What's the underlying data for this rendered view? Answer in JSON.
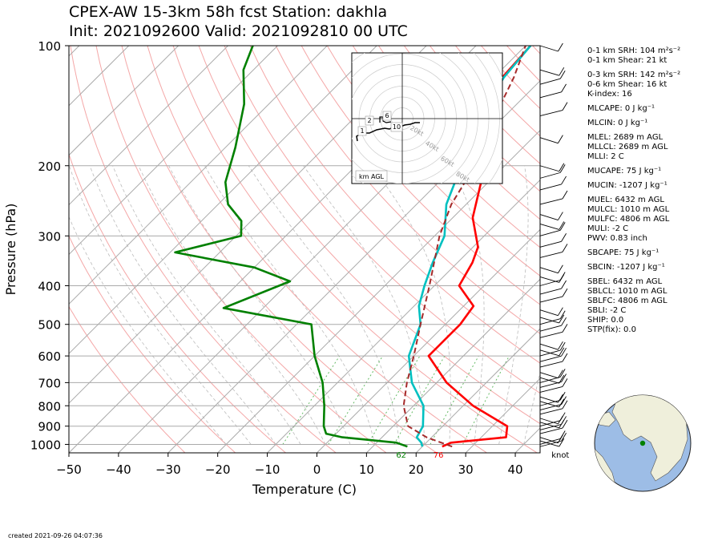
{
  "header": {
    "title_line1": "CPEX-AW 15-3km  58h fcst  Station: dakhla",
    "title_line2": "Init: 2021092600  Valid: 2021092810 00 UTC"
  },
  "footer": "created 2021-09-26 04:07:36",
  "params": [
    {
      "label": "0-1 km SRH: 104 m²s⁻²",
      "gap": false
    },
    {
      "label": "0-1 km Shear: 21 kt",
      "gap": false
    },
    {
      "label": "0-3 km SRH: 142 m²s⁻²",
      "gap": true
    },
    {
      "label": "0-6 km Shear: 16 kt",
      "gap": false
    },
    {
      "label": "K-index: 16",
      "gap": false
    },
    {
      "label": "MLCAPE: 0 J kg⁻¹",
      "gap": true
    },
    {
      "label": "MLCIN: 0 J kg⁻¹",
      "gap": true
    },
    {
      "label": "MLEL: 2689 m AGL",
      "gap": true
    },
    {
      "label": "MLLCL: 2689 m AGL",
      "gap": false
    },
    {
      "label": "MLLI: 2 C",
      "gap": false
    },
    {
      "label": "MUCAPE: 75 J kg⁻¹",
      "gap": true
    },
    {
      "label": "MUCIN: -1207 J kg⁻¹",
      "gap": true
    },
    {
      "label": "MUEL: 6432 m AGL",
      "gap": true
    },
    {
      "label": "MULCL: 1010 m AGL",
      "gap": false
    },
    {
      "label": "MULFC: 4806 m AGL",
      "gap": false
    },
    {
      "label": "MULI: -2 C",
      "gap": false
    },
    {
      "label": "PWV: 0.83 inch",
      "gap": false
    },
    {
      "label": "SBCAPE: 75 J kg⁻¹",
      "gap": true
    },
    {
      "label": "SBCIN: -1207 J kg⁻¹",
      "gap": true
    },
    {
      "label": "SBEL: 6432 m AGL",
      "gap": true
    },
    {
      "label": "SBLCL: 1010 m AGL",
      "gap": false
    },
    {
      "label": "SBLFC: 4806 m AGL",
      "gap": false
    },
    {
      "label": "SBLI: -2 C",
      "gap": false
    },
    {
      "label": "SHIP: 0.0",
      "gap": false
    },
    {
      "label": "STP(fix): 0.0",
      "gap": false
    }
  ],
  "chart_data": {
    "type": "line",
    "xlabel": "Temperature (C)",
    "ylabel": "Pressure (hPa)",
    "xlim": [
      -50,
      45
    ],
    "ylim": [
      1050,
      100
    ],
    "y_scale": "log",
    "x_ticks": [
      -50,
      -40,
      -30,
      -20,
      -10,
      0,
      10,
      20,
      30,
      40
    ],
    "y_ticks": [
      100,
      200,
      300,
      400,
      500,
      600,
      700,
      800,
      900,
      1000
    ],
    "x_tick_labels": [
      "−50",
      "−40",
      "−30",
      "−20",
      "−10",
      "0",
      "10",
      "20",
      "30",
      "40"
    ],
    "y_tick_labels": [
      "100",
      "200",
      "300",
      "400",
      "500",
      "600",
      "700",
      "800",
      "900",
      "1000"
    ],
    "skew_deg": 45,
    "grid": true,
    "series": [
      {
        "id": "temperature",
        "color": "#ff0000",
        "points": [
          [
            24,
            1013
          ],
          [
            25,
            990
          ],
          [
            35,
            960
          ],
          [
            33,
            900
          ],
          [
            22,
            800
          ],
          [
            12,
            700
          ],
          [
            3,
            600
          ],
          [
            3,
            500
          ],
          [
            2,
            450
          ],
          [
            -5,
            400
          ],
          [
            -7,
            350
          ],
          [
            -9,
            320
          ],
          [
            -16,
            270
          ],
          [
            -24,
            200
          ],
          [
            -31,
            175
          ],
          [
            -35,
            150
          ],
          [
            -38,
            130
          ],
          [
            -39,
            100
          ]
        ]
      },
      {
        "id": "virtual_temperature",
        "color": "#00c0c0",
        "points": [
          [
            20,
            1013
          ],
          [
            19,
            990
          ],
          [
            17,
            960
          ],
          [
            16,
            900
          ],
          [
            12,
            800
          ],
          [
            5,
            700
          ],
          [
            -1,
            600
          ],
          [
            -5,
            500
          ],
          [
            -9,
            450
          ],
          [
            -12,
            400
          ],
          [
            -15,
            350
          ],
          [
            -18,
            300
          ],
          [
            -24,
            250
          ],
          [
            -31,
            180
          ],
          [
            -35,
            150
          ],
          [
            -38,
            120
          ],
          [
            -39,
            100
          ]
        ]
      },
      {
        "id": "dewpoint",
        "color": "#008000",
        "points": [
          [
            17,
            1013
          ],
          [
            14,
            990
          ],
          [
            2,
            960
          ],
          [
            -2,
            940
          ],
          [
            -4,
            900
          ],
          [
            -8,
            800
          ],
          [
            -13,
            700
          ],
          [
            -20,
            600
          ],
          [
            -27,
            500
          ],
          [
            -48,
            455
          ],
          [
            -40,
            390
          ],
          [
            -50,
            360
          ],
          [
            -69,
            330
          ],
          [
            -59,
            300
          ],
          [
            -62,
            275
          ],
          [
            -68,
            250
          ],
          [
            -73,
            220
          ],
          [
            -78,
            180
          ],
          [
            -85,
            140
          ],
          [
            -92,
            115
          ],
          [
            -95,
            100
          ]
        ]
      },
      {
        "id": "parcel",
        "color": "#a52a2a",
        "dashed": true,
        "points": [
          [
            26,
            1013
          ],
          [
            19,
            960
          ],
          [
            13,
            900
          ],
          [
            8,
            800
          ],
          [
            4,
            700
          ],
          [
            0,
            600
          ],
          [
            -5,
            500
          ],
          [
            -11,
            400
          ],
          [
            -19,
            300
          ],
          [
            -23,
            250
          ],
          [
            -26,
            200
          ],
          [
            -32,
            150
          ],
          [
            -36,
            120
          ],
          [
            -40,
            100
          ]
        ]
      }
    ],
    "annotations": [
      {
        "text": "62",
        "color": "#008000",
        "x": 17,
        "p": 1050
      },
      {
        "text": "76",
        "color": "#ff0000",
        "x": 24.5,
        "p": 1050
      },
      {
        "text": "knot",
        "color": "#000000",
        "x": 46,
        "p": 1050
      }
    ],
    "hodograph": {
      "rings_kt": [
        20,
        40,
        60,
        80
      ],
      "ring_labels": [
        "20kt",
        "40kt",
        "60kt",
        "80kt"
      ],
      "height_labels": [
        "1",
        "2",
        "6",
        "10"
      ],
      "legend": "km AGL"
    }
  }
}
